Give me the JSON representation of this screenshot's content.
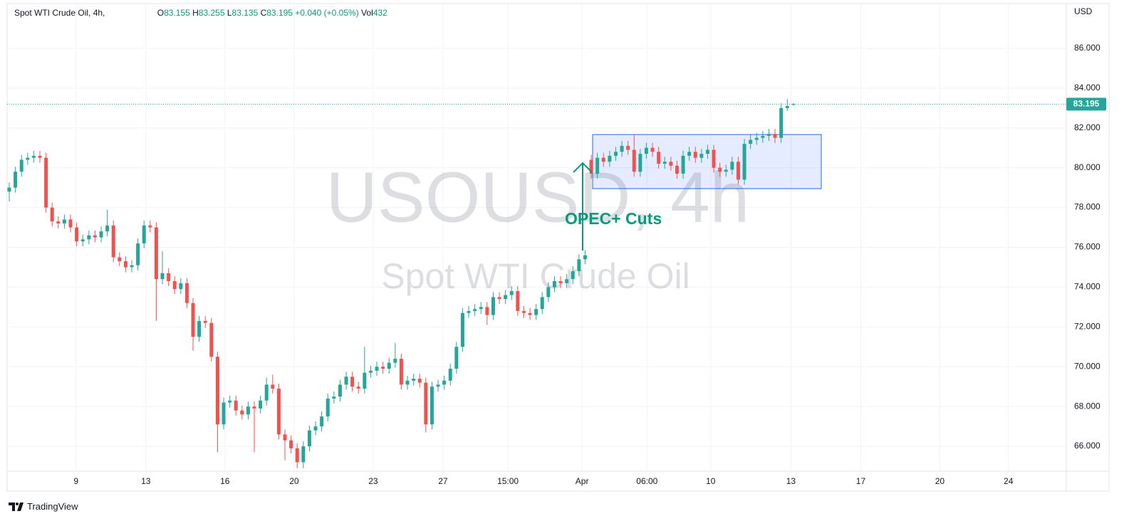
{
  "header": {
    "symbol": "Spot WTI Crude Oil, 4h,",
    "open_label": "O",
    "high_label": "H",
    "low_label": "L",
    "close_label": "C",
    "change": "+0.040 (+0.05%)",
    "volume_label": "Vol",
    "volume": 432
  },
  "chart_data": {
    "type": "candlestick",
    "watermark_title": "USOUSD, 4h",
    "watermark_subtitle": "Spot WTI Crude Oil",
    "annotation": "OPEC+ Cuts",
    "currency": "USD",
    "open": [
      78.8,
      79.0,
      79.8,
      80.4,
      80.5,
      80.6,
      80.5,
      78.0,
      77.3,
      77.2,
      77.4,
      77.0,
      76.3,
      76.4,
      76.6,
      76.5,
      76.8,
      77.1,
      75.5,
      75.3,
      75.0,
      75.1,
      76.2,
      77.1,
      77.0,
      74.4,
      74.7,
      74.3,
      73.9,
      74.2,
      73.2,
      71.5,
      72.3,
      72.2,
      70.5,
      67.1,
      68.2,
      68.3,
      67.8,
      67.6,
      68.0,
      67.9,
      68.3,
      69.1,
      68.9,
      66.6,
      66.3,
      65.9,
      65.2,
      66.0,
      66.8,
      67.0,
      67.5,
      68.4,
      68.5,
      69.1,
      69.5,
      69.0,
      68.9,
      69.7,
      69.8,
      70.0,
      69.9,
      70.2,
      70.4,
      69.1,
      69.3,
      69.4,
      69.2,
      67.1,
      69.0,
      69.1,
      69.3,
      69.9,
      71.0,
      72.7,
      72.8,
      72.9,
      73.0,
      72.6,
      73.5,
      73.4,
      73.6,
      73.8,
      72.8,
      72.7,
      72.6,
      72.9,
      73.5,
      74.0,
      74.3,
      74.2,
      74.4,
      74.8,
      75.4,
      80.4,
      79.7,
      80.5,
      80.3,
      80.6,
      80.8,
      81.1,
      80.9,
      79.8,
      80.7,
      81.0,
      80.8,
      80.2,
      80.3,
      80.1,
      79.7,
      80.6,
      80.8,
      80.5,
      80.7,
      80.9,
      80.0,
      79.8,
      79.9,
      80.3,
      79.4,
      81.2,
      81.4,
      81.5,
      81.6,
      81.7,
      81.5,
      83.0,
      83.155
    ],
    "high": [
      79.25,
      80.05,
      80.65,
      80.75,
      80.85,
      80.85,
      80.75,
      78.25,
      77.55,
      77.65,
      77.65,
      77.25,
      76.65,
      76.85,
      76.85,
      77.05,
      77.9,
      77.35,
      75.75,
      75.55,
      75.35,
      76.45,
      77.35,
      77.35,
      77.25,
      75.8,
      74.95,
      74.55,
      74.45,
      74.45,
      73.45,
      72.55,
      72.55,
      72.45,
      70.75,
      68.45,
      68.55,
      68.55,
      68.05,
      68.25,
      68.25,
      68.55,
      69.45,
      69.6,
      69.15,
      66.85,
      66.55,
      66.15,
      66.25,
      67.05,
      67.25,
      67.75,
      68.65,
      68.75,
      69.35,
      69.75,
      69.75,
      69.25,
      71.0,
      70.05,
      70.25,
      70.25,
      70.45,
      71.2,
      70.65,
      69.55,
      69.65,
      69.65,
      69.45,
      69.25,
      69.35,
      69.55,
      70.15,
      71.25,
      72.95,
      73.05,
      73.15,
      73.25,
      73.25,
      73.75,
      73.75,
      73.85,
      74.05,
      74.05,
      73.05,
      72.95,
      73.15,
      73.75,
      74.25,
      74.55,
      74.55,
      74.65,
      75.05,
      75.65,
      75.85,
      80.65,
      80.75,
      80.75,
      80.85,
      81.05,
      81.35,
      81.35,
      81.65,
      80.95,
      81.25,
      81.25,
      81.05,
      80.55,
      80.55,
      80.35,
      80.85,
      81.05,
      81.05,
      80.95,
      81.15,
      81.15,
      80.25,
      80.15,
      80.55,
      80.55,
      81.45,
      81.65,
      81.75,
      81.85,
      81.95,
      81.95,
      83.25,
      83.45,
      83.255
    ],
    "low": [
      78.3,
      78.75,
      79.55,
      80.15,
      80.25,
      80.25,
      77.75,
      77.05,
      76.95,
      76.95,
      76.75,
      76.05,
      76.05,
      76.15,
      76.25,
      76.25,
      76.55,
      75.25,
      75.05,
      74.75,
      74.75,
      74.85,
      75.95,
      76.75,
      72.3,
      74.15,
      74.05,
      73.65,
      73.65,
      72.95,
      70.8,
      71.25,
      71.95,
      70.25,
      65.7,
      66.85,
      67.95,
      67.55,
      67.35,
      67.35,
      65.7,
      67.65,
      68.05,
      68.65,
      66.35,
      65.3,
      65.65,
      64.9,
      64.9,
      65.75,
      66.55,
      66.75,
      67.25,
      68.15,
      68.25,
      68.85,
      68.75,
      68.65,
      68.65,
      69.45,
      69.55,
      69.65,
      69.65,
      69.95,
      68.85,
      68.85,
      69.05,
      68.95,
      66.7,
      66.85,
      68.75,
      68.85,
      69.05,
      69.65,
      70.75,
      72.45,
      72.55,
      72.65,
      72.1,
      72.35,
      73.15,
      73.15,
      73.35,
      72.55,
      72.45,
      72.35,
      72.35,
      72.65,
      73.25,
      73.75,
      73.95,
      73.95,
      74.15,
      74.55,
      75.15,
      79.45,
      79.45,
      80.05,
      80.05,
      80.35,
      80.55,
      80.65,
      79.55,
      79.55,
      80.45,
      80.55,
      79.95,
      79.95,
      79.85,
      79.45,
      79.45,
      80.35,
      80.25,
      80.25,
      80.45,
      79.75,
      79.55,
      79.55,
      79.65,
      79.15,
      79.15,
      80.95,
      81.15,
      81.25,
      81.35,
      81.25,
      81.25,
      82.85,
      83.135
    ],
    "close": [
      79.0,
      79.8,
      80.4,
      80.5,
      80.6,
      80.5,
      78.0,
      77.3,
      77.2,
      77.4,
      77.0,
      76.3,
      76.4,
      76.6,
      76.5,
      76.8,
      77.1,
      75.5,
      75.3,
      75.0,
      75.1,
      76.2,
      77.1,
      77.0,
      74.4,
      74.7,
      74.3,
      73.9,
      74.2,
      73.2,
      71.5,
      72.3,
      72.2,
      70.5,
      67.1,
      68.2,
      68.3,
      67.8,
      67.6,
      68.0,
      67.9,
      68.3,
      69.1,
      68.9,
      66.6,
      66.3,
      65.9,
      65.2,
      66.0,
      66.8,
      67.0,
      67.5,
      68.4,
      68.5,
      69.1,
      69.5,
      69.0,
      68.9,
      69.7,
      69.8,
      70.0,
      69.9,
      70.2,
      70.4,
      69.1,
      69.3,
      69.4,
      69.2,
      67.1,
      69.0,
      69.1,
      69.3,
      69.9,
      71.0,
      72.7,
      72.8,
      72.9,
      73.0,
      72.6,
      73.5,
      73.4,
      73.6,
      73.8,
      72.8,
      72.7,
      72.6,
      72.9,
      73.5,
      74.0,
      74.3,
      74.2,
      74.4,
      74.8,
      75.4,
      75.6,
      79.7,
      80.5,
      80.3,
      80.6,
      80.8,
      81.1,
      80.9,
      79.8,
      80.7,
      81.0,
      80.8,
      80.2,
      80.3,
      80.1,
      79.7,
      80.6,
      80.8,
      80.5,
      80.7,
      80.9,
      80.0,
      79.8,
      79.9,
      80.3,
      79.4,
      81.2,
      81.4,
      81.5,
      81.6,
      81.7,
      81.5,
      83.0,
      83.1,
      83.195
    ],
    "up_color": "#26a69a",
    "down_color": "#ef5350",
    "ylim": [
      64.75,
      88.25
    ],
    "yticks": [
      {
        "value": 66,
        "label": "66.000"
      },
      {
        "value": 68,
        "label": "68.000"
      },
      {
        "value": 70,
        "label": "70.000"
      },
      {
        "value": 72,
        "label": "72.000"
      },
      {
        "value": 74,
        "label": "74.000"
      },
      {
        "value": 76,
        "label": "76.000"
      },
      {
        "value": 78,
        "label": "78.000"
      },
      {
        "value": 80,
        "label": "80.000"
      },
      {
        "value": 82,
        "label": "82.000"
      },
      {
        "value": 84,
        "label": "84.000"
      },
      {
        "value": 86,
        "label": "86.000"
      }
    ],
    "xlim": [
      -0.35,
      172.55
    ],
    "xticks": [
      {
        "value": 10.9,
        "label": "9"
      },
      {
        "value": 22.3,
        "label": "13"
      },
      {
        "value": 35.2,
        "label": "16"
      },
      {
        "value": 46.5,
        "label": "20"
      },
      {
        "value": 59.4,
        "label": "23"
      },
      {
        "value": 70.8,
        "label": "27"
      },
      {
        "value": 81.4,
        "label": "15:00"
      },
      {
        "value": 93.5,
        "label": "Apr"
      },
      {
        "value": 104.1,
        "label": "06:00"
      },
      {
        "value": 114.5,
        "label": "10"
      },
      {
        "value": 127.6,
        "label": "13"
      },
      {
        "value": 139,
        "label": "17"
      },
      {
        "value": 151.9,
        "label": "20"
      },
      {
        "value": 163.1,
        "label": "24"
      }
    ],
    "grid": true
  },
  "footer": {
    "brand": "TradingView"
  }
}
